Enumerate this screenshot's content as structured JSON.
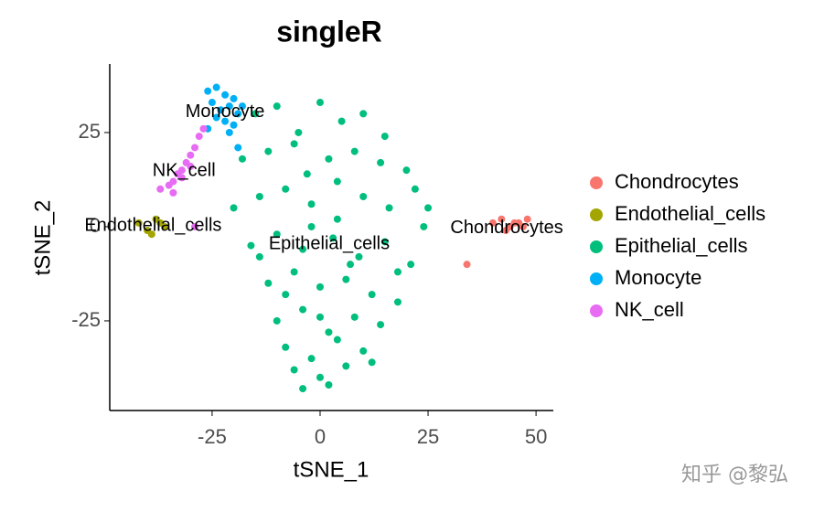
{
  "chart_data": {
    "type": "scatter",
    "title": "singleR",
    "x_label": "tSNE_1",
    "y_label": "tSNE_2",
    "xlim": [
      -48.7,
      54
    ],
    "ylim": [
      -48.8,
      43.2
    ],
    "xticks": [
      -25,
      0,
      25,
      50
    ],
    "yticks": [
      -25,
      0,
      25
    ],
    "grid": false,
    "legend": "right",
    "point_labels": true,
    "watermark": "知乎 @黎弘",
    "series": [
      {
        "name": "Chondrocytes",
        "color": "#F8766D",
        "x": [
          40,
          42,
          44,
          46,
          48,
          43,
          45,
          47,
          34
        ],
        "values": [
          1,
          2,
          0,
          1,
          2,
          -1,
          1,
          0,
          -10
        ]
      },
      {
        "name": "Endothelial_cells",
        "color": "#A3A500",
        "x": [
          -42,
          -40,
          -38,
          -36,
          -39,
          -37
        ],
        "values": [
          1,
          -1,
          2,
          0,
          -2,
          1
        ]
      },
      {
        "name": "Epithelial_cells",
        "color": "#00BF7D",
        "x": [
          -15,
          -10,
          -5,
          0,
          5,
          10,
          15,
          20,
          -18,
          -12,
          -6,
          2,
          8,
          14,
          22,
          25,
          -20,
          -14,
          -8,
          -2,
          4,
          10,
          16,
          24,
          -16,
          -10,
          -4,
          3,
          9,
          15,
          21,
          -12,
          -6,
          0,
          6,
          12,
          18,
          -10,
          -4,
          2,
          8,
          14,
          -8,
          -2,
          4,
          10,
          -6,
          0,
          6,
          12,
          -4,
          2,
          -2,
          4,
          -8,
          7,
          -14,
          18,
          0,
          -3
        ],
        "values": [
          30,
          32,
          25,
          33,
          28,
          30,
          24,
          15,
          18,
          20,
          22,
          18,
          20,
          17,
          10,
          5,
          5,
          8,
          10,
          6,
          12,
          8,
          5,
          0,
          -5,
          -2,
          -6,
          -3,
          -8,
          -4,
          -10,
          -15,
          -12,
          -16,
          -14,
          -18,
          -20,
          -25,
          -22,
          -28,
          -24,
          -26,
          -32,
          -35,
          -30,
          -33,
          -38,
          -40,
          -37,
          -36,
          -43,
          -42,
          0,
          2,
          -18,
          -10,
          -8,
          -12,
          -24,
          14
        ]
      },
      {
        "name": "Monocyte",
        "color": "#00B0F6",
        "x": [
          -26,
          -24,
          -22,
          -20,
          -18,
          -25,
          -23,
          -21,
          -19,
          -24,
          -22,
          -20,
          -26,
          -21,
          -19
        ],
        "values": [
          36,
          37,
          35,
          34,
          32,
          33,
          31,
          32,
          30,
          29,
          28,
          27,
          26,
          25,
          21
        ]
      },
      {
        "name": "NK_cell",
        "color": "#E76BF3",
        "x": [
          -37,
          -35,
          -34,
          -33,
          -32,
          -31,
          -30,
          -29,
          -28,
          -34,
          -32,
          -30,
          -27,
          -29
        ],
        "values": [
          10,
          11,
          12,
          14,
          15,
          17,
          19,
          21,
          24,
          9,
          13,
          16,
          26,
          0
        ]
      }
    ]
  }
}
